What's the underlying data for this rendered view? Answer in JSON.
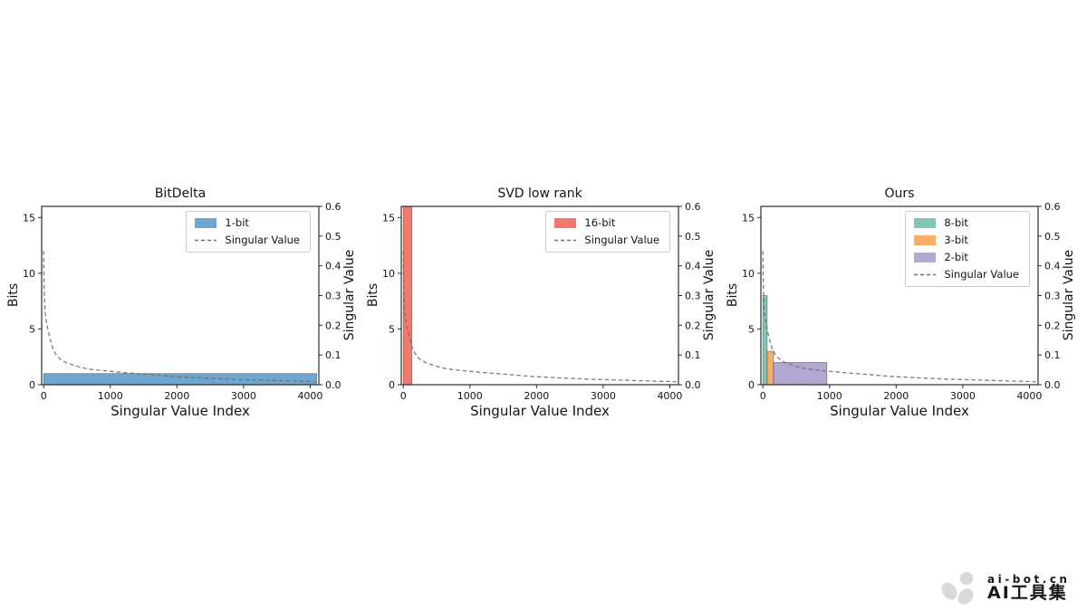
{
  "page": {
    "background": "#ffffff"
  },
  "chart_data": {
    "type": "multi-panel bar+line",
    "shared": {
      "xlabel": "Singular Value Index",
      "ylabel_left": "Bits",
      "ylabel_right": "Singular Value",
      "xticks": [
        0,
        1000,
        2000,
        3000,
        4000
      ],
      "yticks_left": [
        0,
        5,
        10,
        15
      ],
      "yticks_right": [
        0.0,
        0.1,
        0.2,
        0.3,
        0.4,
        0.5,
        0.6
      ],
      "xlim": [
        -30,
        4130
      ],
      "ylim_left": [
        0,
        16
      ],
      "ylim_right": [
        0,
        0.6
      ],
      "grid": false,
      "legend_position": "upper right",
      "curve_label": "Singular Value",
      "curve_color": "#6e6e6e",
      "curve_style": "dashed",
      "singular_value_curve": {
        "x": [
          0,
          3,
          8,
          15,
          25,
          40,
          60,
          85,
          115,
          150,
          200,
          260,
          330,
          420,
          530,
          660,
          820,
          1000,
          1250,
          1550,
          1900,
          2300,
          2750,
          3250,
          3800,
          4096
        ],
        "y": [
          0.45,
          0.38,
          0.32,
          0.275,
          0.24,
          0.215,
          0.19,
          0.165,
          0.138,
          0.115,
          0.096,
          0.084,
          0.075,
          0.068,
          0.06,
          0.053,
          0.049,
          0.045,
          0.04,
          0.035,
          0.028,
          0.0235,
          0.019,
          0.0155,
          0.012,
          0.01
        ]
      }
    },
    "panels": [
      {
        "title": "BitDelta",
        "bars": [
          {
            "label": "1-bit",
            "color": "#6fa6cf",
            "x_start": 0,
            "x_end": 4096,
            "bits": 1
          }
        ],
        "legend": [
          {
            "label": "1-bit",
            "type": "patch",
            "color": "#6fa6cf"
          },
          {
            "label": "Singular Value",
            "type": "dash",
            "color": "#6e6e6e"
          }
        ]
      },
      {
        "title": "SVD low rank",
        "bars": [
          {
            "label": "16-bit",
            "color": "#f4796b",
            "x_start": 0,
            "x_end": 128,
            "bits": 16
          }
        ],
        "legend": [
          {
            "label": "16-bit",
            "type": "patch",
            "color": "#f4796b"
          },
          {
            "label": "Singular Value",
            "type": "dash",
            "color": "#6e6e6e"
          }
        ]
      },
      {
        "title": "Ours",
        "bars": [
          {
            "label": "8-bit",
            "color": "#82c6b8",
            "x_start": 0,
            "x_end": 64,
            "bits": 8
          },
          {
            "label": "3-bit",
            "color": "#fbae63",
            "x_start": 64,
            "x_end": 160,
            "bits": 3
          },
          {
            "label": "2-bit",
            "color": "#b3a7d3",
            "x_start": 160,
            "x_end": 960,
            "bits": 2
          }
        ],
        "legend": [
          {
            "label": "8-bit",
            "type": "patch",
            "color": "#82c6b8"
          },
          {
            "label": "3-bit",
            "type": "patch",
            "color": "#fbae63"
          },
          {
            "label": "2-bit",
            "type": "patch",
            "color": "#b3a7d3"
          },
          {
            "label": "Singular Value",
            "type": "dash",
            "color": "#6e6e6e"
          }
        ]
      }
    ]
  },
  "watermark": {
    "line1": "ai-bot.cn",
    "line2": "AI工具集",
    "color": "#d9d9d9",
    "icon": "paw-icon"
  }
}
